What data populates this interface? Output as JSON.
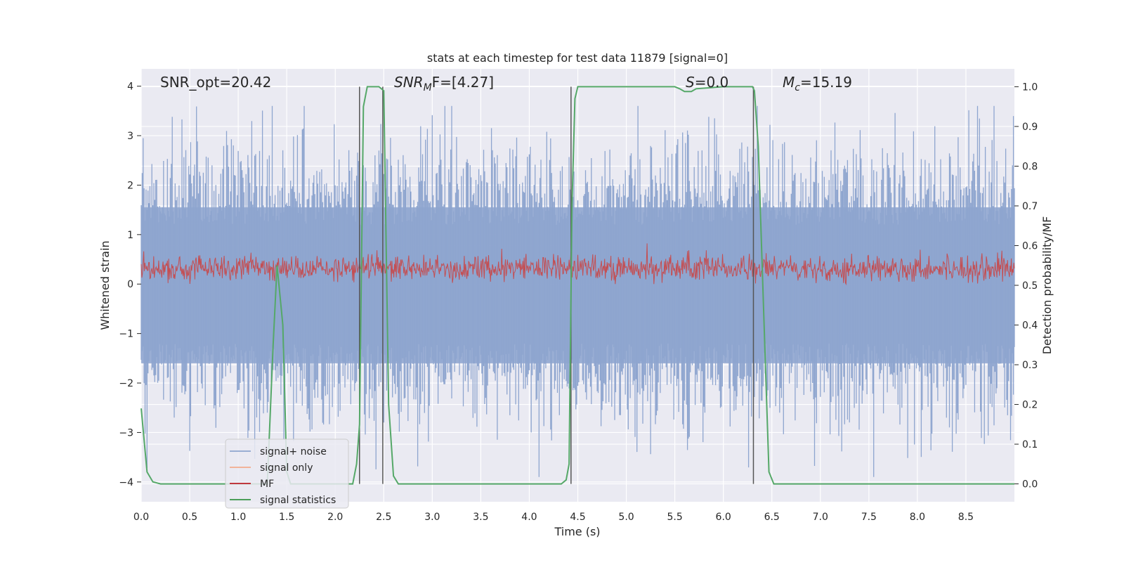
{
  "chart_data": {
    "type": "line",
    "title": "stats at each timestep for test data 11879 [signal=0]",
    "xlabel": "Time (s)",
    "ylabel": "Whitened strain",
    "ylabel_right": "Detection probability/MF",
    "xlim": [
      0,
      9.0
    ],
    "ylim": [
      -4.4,
      4.35
    ],
    "ylim_right": [
      -0.045,
      1.045
    ],
    "x_ticks": [
      "0.0",
      "0.5",
      "1.0",
      "1.5",
      "2.0",
      "2.5",
      "3.0",
      "3.5",
      "4.0",
      "4.5",
      "5.0",
      "5.5",
      "6.0",
      "6.5",
      "7.0",
      "7.5",
      "8.0",
      "8.5"
    ],
    "y_ticks": [
      "4",
      "3",
      "2",
      "1",
      "0",
      "−1",
      "−2",
      "−3",
      "−4"
    ],
    "y_ticks_right": [
      "1.0",
      "0.9",
      "0.8",
      "0.7",
      "0.6",
      "0.5",
      "0.4",
      "0.3",
      "0.2",
      "0.1",
      "0.0"
    ],
    "annotations": {
      "snr_opt": "SNR_opt=20.42",
      "snr_mf_sym": "SNR",
      "snr_mf_sub": "M",
      "snr_mf_rest": "F=[4.27]",
      "s_sym": "S",
      "s_rest": "=0.0",
      "mc_sym": "M",
      "mc_sub": "c",
      "mc_rest": "=15.19"
    },
    "legend": {
      "placement": "lower-left",
      "entries": [
        {
          "label": "signal+ noise",
          "color": "#9aaed3"
        },
        {
          "label": "signal only",
          "color": "#f2b39a"
        },
        {
          "label": "MF",
          "color": "#c0393f"
        },
        {
          "label": "signal statistics",
          "color": "#4c9f5a"
        }
      ]
    },
    "colors": {
      "signal_noise": "#8ea5cf",
      "mf": "#c44e52",
      "stat": "#55a868",
      "vline": "#555555",
      "grid": "#ffffff",
      "bg": "#eaeaf2"
    },
    "vlines": [
      2.25,
      2.49,
      4.43,
      6.31
    ],
    "series": [
      {
        "name": "signal+ noise",
        "representation": "dense noise band",
        "core_range": [
          -1.6,
          1.55
        ],
        "peak_range": [
          -3.9,
          3.6
        ]
      },
      {
        "name": "MF",
        "representation": "dense noise band",
        "center": 0.32,
        "range": [
          0.0,
          1.0
        ]
      },
      {
        "name": "signal statistics",
        "x": [
          0.0,
          0.06,
          0.12,
          0.2,
          0.5,
          1.0,
          1.3,
          1.36,
          1.4,
          1.46,
          1.5,
          1.54,
          2.0,
          2.18,
          2.22,
          2.25,
          2.29,
          2.33,
          2.45,
          2.5,
          2.55,
          2.6,
          2.65,
          3.0,
          4.0,
          4.33,
          4.38,
          4.41,
          4.44,
          4.47,
          4.5,
          5.0,
          5.5,
          5.55,
          5.6,
          5.67,
          5.72,
          6.0,
          6.3,
          6.32,
          6.36,
          6.42,
          6.47,
          6.52,
          7.0,
          8.0,
          9.0
        ],
        "y": [
          0.19,
          0.03,
          0.005,
          0.0,
          0.0,
          0.0,
          0.0,
          0.35,
          0.55,
          0.4,
          0.03,
          0.0,
          0.0,
          0.0,
          0.05,
          0.15,
          0.95,
          1.0,
          1.0,
          0.99,
          0.2,
          0.02,
          0.0,
          0.0,
          0.0,
          0.0,
          0.01,
          0.05,
          0.7,
          0.97,
          1.0,
          1.0,
          1.0,
          0.995,
          0.988,
          0.988,
          0.995,
          1.0,
          1.0,
          0.99,
          0.85,
          0.4,
          0.03,
          0.0,
          0.0,
          0.0,
          0.0
        ]
      }
    ]
  }
}
